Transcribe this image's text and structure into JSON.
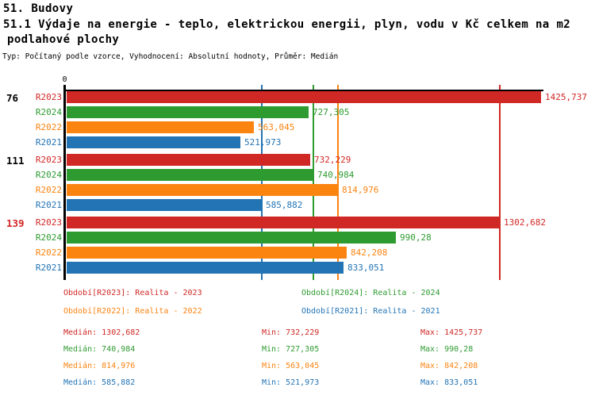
{
  "header": {
    "section_title": "51. Budovy",
    "indicator_title_line1": "51.1 Výdaje na energie - teplo, elektrickou energii, plyn, vodu v Kč celkem na m2",
    "indicator_title_line2": "podlahové plochy",
    "meta": "Typ: Počítaný podle vzorce, Vyhodnocení: Absolutní hodnoty, Průměr: Medián"
  },
  "colors": {
    "r2023": "#d02825",
    "r2024": "#2e9b31",
    "r2022": "#fb8310",
    "r2021": "#2374b5",
    "axis": "#000000",
    "highlight_category": "#d02825"
  },
  "chart_data": {
    "type": "bar",
    "orientation": "horizontal",
    "x_axis": {
      "zero_label": "0",
      "min": 0,
      "max": 1425.737
    },
    "categories": [
      "76",
      "111",
      "139"
    ],
    "category_colors": [
      "#000000",
      "#000000",
      "#d02825"
    ],
    "series": [
      {
        "key": "R2023",
        "color": "#d02825",
        "values": [
          1425.737,
          732.229,
          1302.682
        ],
        "value_labels": [
          "1425,737",
          "732,229",
          "1302,682"
        ],
        "median": 1302.682
      },
      {
        "key": "R2024",
        "color": "#2e9b31",
        "values": [
          727.305,
          740.984,
          990.28
        ],
        "value_labels": [
          "727,305",
          "740,984",
          "990,28"
        ],
        "median": 740.984
      },
      {
        "key": "R2022",
        "color": "#fb8310",
        "values": [
          563.045,
          814.976,
          842.208
        ],
        "value_labels": [
          "563,045",
          "814,976",
          "842,208"
        ],
        "median": 814.976
      },
      {
        "key": "R2021",
        "color": "#2374b5",
        "values": [
          521.973,
          585.882,
          833.051
        ],
        "value_labels": [
          "521,973",
          "585,882",
          "833,051"
        ],
        "median": 585.882
      }
    ],
    "gridlines": "vertical median line per series",
    "legend_position": "bottom"
  },
  "legend": {
    "items": [
      {
        "key": "r2023",
        "label": "Období[R2023]: Realita - 2023",
        "color": "#d02825"
      },
      {
        "key": "r2024",
        "label": "Období[R2024]: Realita - 2024",
        "color": "#2e9b31"
      },
      {
        "key": "r2022",
        "label": "Období[R2022]: Realita - 2022",
        "color": "#fb8310"
      },
      {
        "key": "r2021",
        "label": "Období[R2021]: Realita - 2021",
        "color": "#2374b5"
      }
    ]
  },
  "stats": {
    "rows": [
      {
        "key": "r2023",
        "color": "#d02825",
        "median": "Medián: 1302,682",
        "min": "Min: 732,229",
        "max": "Max: 1425,737"
      },
      {
        "key": "r2024",
        "color": "#2e9b31",
        "median": "Medián: 740,984",
        "min": "Min: 727,305",
        "max": "Max: 990,28"
      },
      {
        "key": "r2022",
        "color": "#fb8310",
        "median": "Medián: 814,976",
        "min": "Min: 563,045",
        "max": "Max: 842,208"
      },
      {
        "key": "r2021",
        "color": "#2374b5",
        "median": "Medián: 585,882",
        "min": "Min: 521,973",
        "max": "Max: 833,051"
      }
    ]
  }
}
